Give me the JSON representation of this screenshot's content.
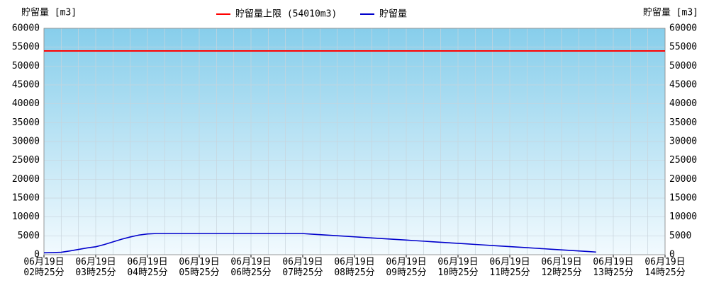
{
  "chart_data": {
    "type": "line",
    "y_label_left": "貯留量 [m3]",
    "y_label_right": "貯留量 [m3]",
    "categories": [
      "06月19日\n02時25分",
      null,
      null,
      null,
      null,
      null,
      "06月19日\n03時25分",
      null,
      null,
      null,
      null,
      null,
      "06月19日\n04時25分",
      null,
      null,
      null,
      null,
      null,
      "06月19日\n05時25分",
      null,
      null,
      null,
      null,
      null,
      "06月19日\n06時25分",
      null,
      null,
      null,
      null,
      null,
      "06月19日\n07時25分",
      null,
      null,
      null,
      null,
      null,
      "06月19日\n08時25分",
      null,
      null,
      null,
      null,
      null,
      "06月19日\n09時25分",
      null,
      null,
      null,
      null,
      null,
      "06月19日\n10時25分",
      null,
      null,
      null,
      null,
      null,
      "06月19日\n11時25分",
      null,
      null,
      null,
      null,
      null,
      "06月19日\n12時25分",
      null,
      null,
      null,
      null,
      null,
      "06月19日\n13時25分",
      null,
      null,
      null,
      null,
      null,
      "06月19日\n14時25分"
    ],
    "series": [
      {
        "name": "貯留量",
        "color": "#0000cc",
        "values": [
          500,
          550,
          650,
          1000,
          1400,
          1800,
          2100,
          2700,
          3400,
          4100,
          4700,
          5200,
          5500,
          5600,
          5600,
          5600,
          5600,
          5600,
          5600,
          5600,
          5600,
          5600,
          5600,
          5600,
          5600,
          5600,
          5600,
          5600,
          5600,
          5600,
          5600,
          5456,
          5312,
          5168,
          5024,
          4880,
          4736,
          4592,
          4448,
          4304,
          4160,
          4016,
          3872,
          3728,
          3584,
          3440,
          3296,
          3152,
          3008,
          2864,
          2720,
          2576,
          2432,
          2288,
          2144,
          2000,
          1856,
          1712,
          1568,
          1424,
          1280,
          1136,
          992,
          848,
          704,
          null,
          null,
          null,
          null,
          null,
          null,
          null,
          null
        ]
      }
    ],
    "limit": {
      "name": "貯留量上限 (54010m3)",
      "value": 54010,
      "color": "#ff0000"
    },
    "ylim": [
      0,
      60000
    ],
    "yticks": [
      0,
      5000,
      10000,
      15000,
      20000,
      25000,
      30000,
      35000,
      40000,
      45000,
      50000,
      55000,
      60000
    ],
    "grid": true
  }
}
